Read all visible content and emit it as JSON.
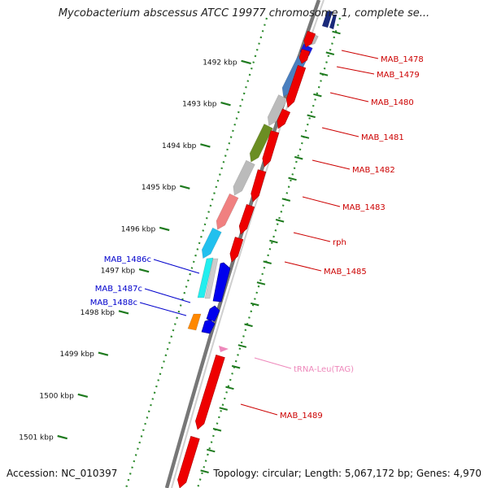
{
  "title": "Mycobacterium abscessus ATCC 19977 chromosome 1, complete se...",
  "accession": "Accession: NC_010397",
  "topology": "Topology: circular; Length: 5,067,172 bp; Genes: 4,970",
  "colors": {
    "forward_label": "#cc0000",
    "reverse_label": "#0000cc",
    "trna_label": "#ee88bb",
    "ruler": "#2e8b2e",
    "backbone": "#888888"
  },
  "ruler_ticks": [
    "1492 kbp",
    "1493 kbp",
    "1494 kbp",
    "1495 kbp",
    "1496 kbp",
    "1497 kbp",
    "1498 kbp",
    "1499 kbp",
    "1500 kbp",
    "1501 kbp"
  ],
  "forward_genes": [
    {
      "label": "MAB_1478",
      "start": 1491.55,
      "end": 1491.83,
      "color": "#bbbbbb"
    },
    {
      "label": "MAB_1479",
      "start": 1491.83,
      "end": 1492.12,
      "color": "#1a1add"
    },
    {
      "label": "MAB_1480",
      "start": 1492.12,
      "end": 1493.05,
      "color": "#4a7fbf"
    },
    {
      "label": "MAB_1481",
      "start": 1493.05,
      "end": 1493.75,
      "color": "#bbbbbb"
    },
    {
      "label": "MAB_1482",
      "start": 1493.75,
      "end": 1494.62,
      "color": "#6b8e23"
    },
    {
      "label": "MAB_1483",
      "start": 1494.62,
      "end": 1495.42,
      "color": "#bbbbbb"
    },
    {
      "label": "rph",
      "start": 1495.42,
      "end": 1496.24,
      "color": "#f08080"
    },
    {
      "label": "MAB_1485",
      "start": 1496.24,
      "end": 1496.92,
      "color": "#22c0ee"
    }
  ],
  "reverse_genes": [
    {
      "label": "MAB_1486c",
      "start": 1496.62,
      "end": 1497.36,
      "color": "#22eeee"
    },
    {
      "label": "MAB_1487c",
      "start": 1497.84,
      "end": 1498.12,
      "color": "#ff8800"
    },
    {
      "label": "MAB_1488c",
      "start": 1498.12,
      "end": 1498.34,
      "color": "#ff8800"
    }
  ],
  "trna": {
    "label": "tRNA-Leu(TAG)"
  },
  "other_genes": [
    {
      "label": "MAB_1489"
    }
  ]
}
